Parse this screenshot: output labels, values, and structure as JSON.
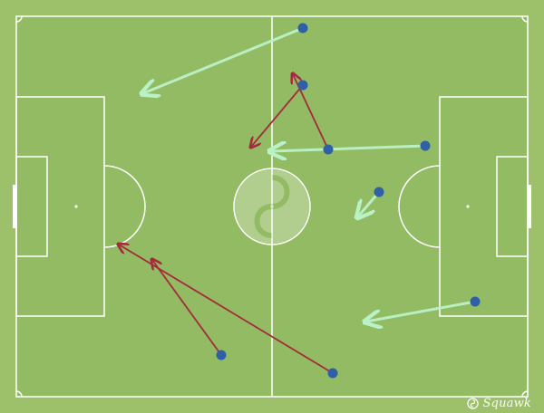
{
  "colors": {
    "background": "#9dc06a",
    "pitch": "#93bb63",
    "lines": "#ffffff",
    "successful_pass": "#b9f2c6",
    "unsuccessful_pass": "#a42a3c",
    "player_dot": "#2e5fa7"
  },
  "brand": {
    "name": "Squawk",
    "icon": "squawka-logo-icon"
  },
  "passes": [
    {
      "id": "p1",
      "outcome": "successful"
    },
    {
      "id": "p2",
      "outcome": "unsuccessful"
    },
    {
      "id": "p3",
      "outcome": "unsuccessful"
    },
    {
      "id": "p4",
      "outcome": "successful"
    },
    {
      "id": "p5",
      "outcome": "successful"
    },
    {
      "id": "p6",
      "outcome": "successful"
    },
    {
      "id": "p7",
      "outcome": "unsuccessful"
    },
    {
      "id": "p8",
      "outcome": "unsuccessful"
    }
  ]
}
